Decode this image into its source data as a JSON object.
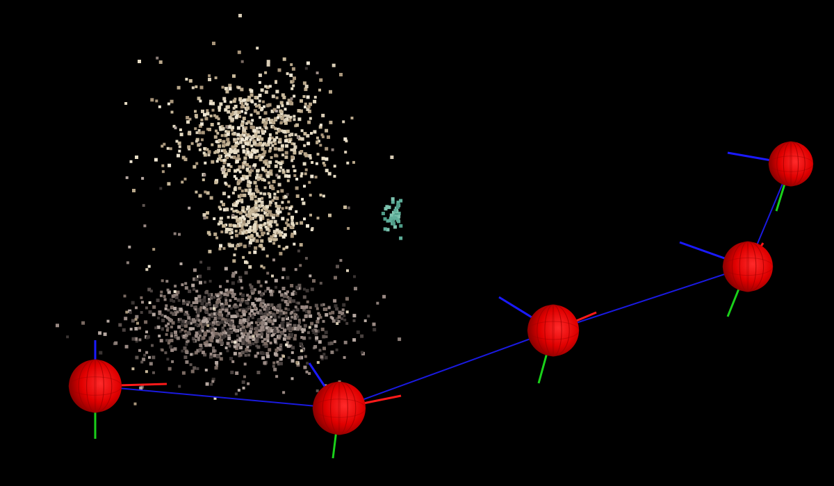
{
  "scene": {
    "background": "#000000",
    "point_cloud_colors": {
      "upper_cluster": [
        "#d9cdb6",
        "#c8b89a",
        "#b9a78a",
        "#efe6d3",
        "#a8957a",
        "#e6dcc4"
      ],
      "lower_cluster": [
        "#7a6a62",
        "#5e5450",
        "#9b8a84",
        "#4a4240",
        "#b5a7a0",
        "#3a3432",
        "#8c7e78"
      ],
      "teal_points": [
        "#5fae9a",
        "#4f9c88",
        "#7cc2ae"
      ]
    },
    "camera_marker_color": "#ff0000",
    "axis_colors": {
      "x": "#ff1a1a",
      "y": "#1ad11a",
      "z": "#1a1aff"
    },
    "trajectory_color": "#1a1ae0",
    "camera_count": 5
  }
}
